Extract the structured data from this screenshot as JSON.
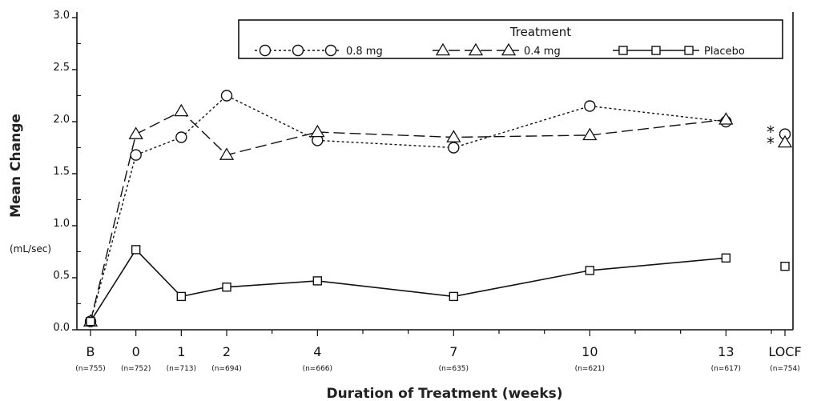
{
  "chart_data": {
    "type": "line",
    "ylabel": "Mean Change",
    "yunit": "(mL/sec)",
    "xlabel": "Duration of Treatment (weeks)",
    "ylim": [
      0.0,
      3.0
    ],
    "yticks": [
      "0.0",
      "0.5",
      "1.0",
      "1.5",
      "2.0",
      "2.5",
      "3.0"
    ],
    "categories": [
      "B",
      "0",
      "1",
      "2",
      "4",
      "7",
      "10",
      "13",
      "LOCF"
    ],
    "category_weeks": [
      -1,
      0,
      1,
      2,
      4,
      7,
      10,
      13,
      14.3
    ],
    "n_labels": [
      "(n=755)",
      "(n=752)",
      "(n=713)",
      "(n=694)",
      "(n=666)",
      "(n=635)",
      "(n=621)",
      "(n=617)",
      "(n=754)"
    ],
    "legend": {
      "title": "Treatment",
      "placement": "top-right"
    },
    "series": [
      {
        "name": "0.8 mg",
        "marker": "circle",
        "line": "dotted",
        "values": [
          0.08,
          1.68,
          1.85,
          2.25,
          1.82,
          1.75,
          2.15,
          2.0,
          1.88
        ]
      },
      {
        "name": "0.4 mg",
        "marker": "triangle",
        "line": "dashed",
        "values": [
          0.08,
          1.88,
          2.1,
          1.68,
          1.9,
          1.85,
          1.87,
          2.02,
          1.8
        ]
      },
      {
        "name": "Placebo",
        "marker": "square",
        "line": "solid",
        "values": [
          0.08,
          0.77,
          0.32,
          0.41,
          0.47,
          0.32,
          0.57,
          0.69,
          0.61
        ]
      }
    ],
    "annotations": [
      "*",
      "*"
    ],
    "grid": false
  }
}
